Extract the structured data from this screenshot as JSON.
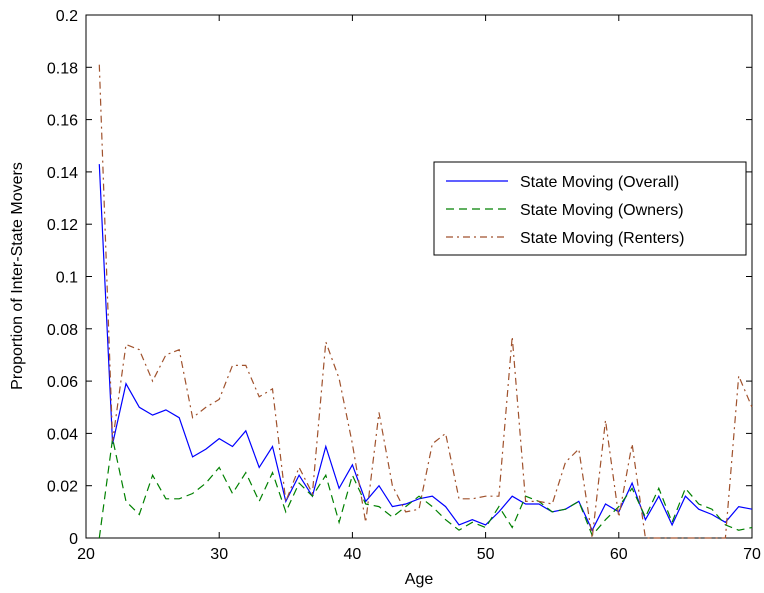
{
  "chart_data": {
    "type": "line",
    "xlabel": "Age",
    "ylabel": "Proportion of Inter-State Movers",
    "xlim": [
      20,
      70
    ],
    "ylim": [
      0,
      0.2
    ],
    "xticks": [
      20,
      30,
      40,
      50,
      60,
      70
    ],
    "yticks": [
      0,
      0.02,
      0.04,
      0.06,
      0.08,
      0.1,
      0.12,
      0.14,
      0.16,
      0.18,
      0.2
    ],
    "xtick_labels": [
      "20",
      "30",
      "40",
      "50",
      "60",
      "70"
    ],
    "ytick_labels": [
      "0",
      "0.02",
      "0.04",
      "0.06",
      "0.08",
      "0.1",
      "0.12",
      "0.14",
      "0.16",
      "0.18",
      "0.2"
    ],
    "grid": false,
    "legend_position": "upper-right",
    "x": [
      21,
      22,
      23,
      24,
      25,
      26,
      27,
      28,
      29,
      30,
      31,
      32,
      33,
      34,
      35,
      36,
      37,
      38,
      39,
      40,
      41,
      42,
      43,
      44,
      45,
      46,
      47,
      48,
      49,
      50,
      51,
      52,
      53,
      54,
      55,
      56,
      57,
      58,
      59,
      60,
      61,
      62,
      63,
      64,
      65,
      66,
      67,
      68,
      69,
      70
    ],
    "series": [
      {
        "name": "State Moving (Overall)",
        "color": "#0000ff",
        "style": "solid",
        "values": [
          0.143,
          0.036,
          0.059,
          0.05,
          0.047,
          0.049,
          0.046,
          0.031,
          0.034,
          0.038,
          0.035,
          0.041,
          0.027,
          0.035,
          0.014,
          0.024,
          0.016,
          0.035,
          0.019,
          0.028,
          0.014,
          0.02,
          0.012,
          0.013,
          0.015,
          0.016,
          0.012,
          0.005,
          0.007,
          0.005,
          0.01,
          0.016,
          0.013,
          0.013,
          0.01,
          0.011,
          0.014,
          0.003,
          0.013,
          0.01,
          0.021,
          0.007,
          0.016,
          0.005,
          0.016,
          0.011,
          0.009,
          0.006,
          0.012,
          0.011
        ]
      },
      {
        "name": "State Moving (Owners)",
        "color": "#008000",
        "style": "dashed",
        "values": [
          0.0,
          0.038,
          0.014,
          0.009,
          0.024,
          0.015,
          0.015,
          0.017,
          0.021,
          0.027,
          0.017,
          0.025,
          0.014,
          0.025,
          0.01,
          0.021,
          0.016,
          0.024,
          0.006,
          0.024,
          0.013,
          0.012,
          0.008,
          0.012,
          0.016,
          0.012,
          0.007,
          0.003,
          0.006,
          0.004,
          0.012,
          0.004,
          0.016,
          0.014,
          0.01,
          0.011,
          0.014,
          0.001,
          0.007,
          0.012,
          0.019,
          0.008,
          0.019,
          0.006,
          0.019,
          0.013,
          0.011,
          0.005,
          0.003,
          0.004
        ]
      },
      {
        "name": "State Moving (Renters)",
        "color": "#a0522d",
        "style": "dashdot",
        "values": [
          0.181,
          0.037,
          0.074,
          0.072,
          0.06,
          0.07,
          0.072,
          0.046,
          0.05,
          0.053,
          0.066,
          0.066,
          0.054,
          0.057,
          0.014,
          0.027,
          0.017,
          0.075,
          0.061,
          0.036,
          0.006,
          0.048,
          0.02,
          0.01,
          0.011,
          0.036,
          0.04,
          0.015,
          0.015,
          0.016,
          0.016,
          0.077,
          0.014,
          0.014,
          0.013,
          0.029,
          0.034,
          0.0,
          0.045,
          0.008,
          0.036,
          0.0,
          0.0,
          0.0,
          0.0,
          0.0,
          0.0,
          0.0,
          0.062,
          0.05
        ]
      }
    ]
  }
}
